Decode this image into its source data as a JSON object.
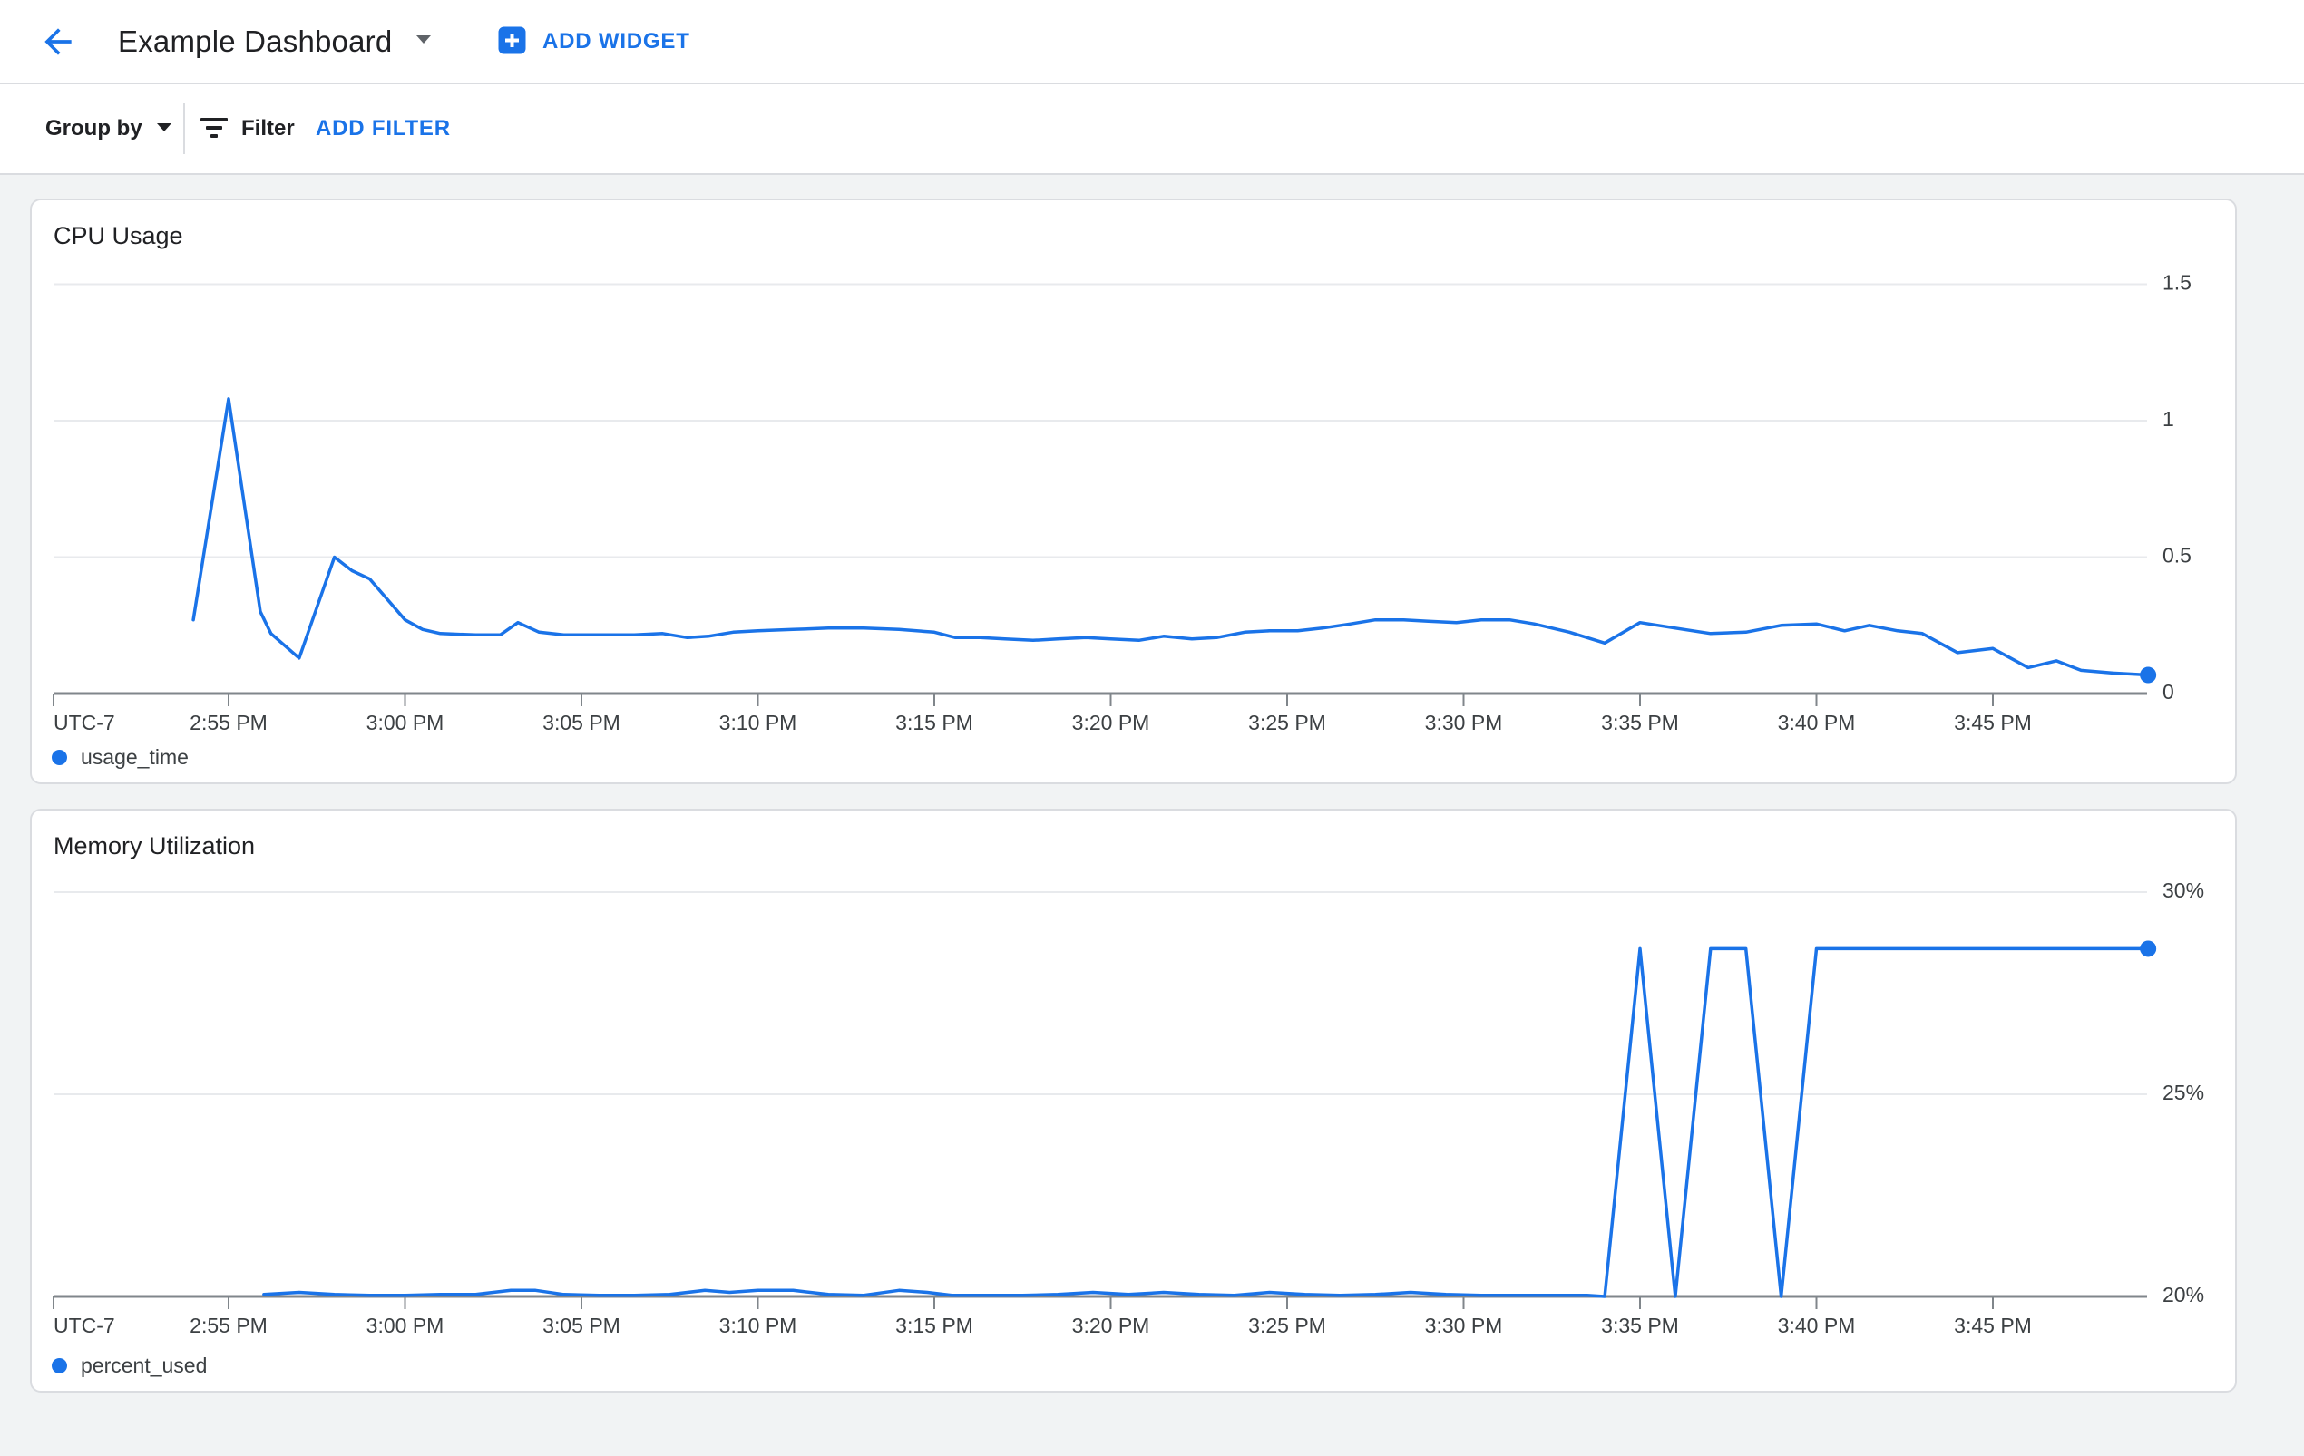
{
  "header": {
    "back_icon": "arrow-back",
    "title": "Example Dashboard",
    "title_caret_icon": "arrow-drop-down",
    "add_widget_icon": "plus-box",
    "add_widget_label": "ADD WIDGET"
  },
  "toolbar": {
    "group_by_label": "Group by",
    "group_by_caret_icon": "arrow-drop-down",
    "filter_icon": "filter-list",
    "filter_label": "Filter",
    "add_filter_label": "ADD FILTER"
  },
  "colors": {
    "accent": "#1a73e8",
    "series_line": "#1a73e8",
    "grid_line": "#e8eaed",
    "axis_line": "#80868b",
    "tick_text": "#3c4043",
    "title_text": "#202124",
    "card_border": "#dadce0",
    "card_background": "#ffffff",
    "page_background": "#f1f3f4"
  },
  "chart_data": [
    {
      "type": "line",
      "title": "CPU Usage",
      "timezone_label": "UTC-7",
      "legend_position": "bottom-left",
      "grid": true,
      "x_axis": {
        "tick_labels": [
          "2:55 PM",
          "3:00 PM",
          "3:05 PM",
          "3:10 PM",
          "3:15 PM",
          "3:20 PM",
          "3:25 PM",
          "3:30 PM",
          "3:35 PM",
          "3:40 PM",
          "3:45 PM"
        ],
        "tick_interval_minutes": 5,
        "data_start": "2:54 PM",
        "data_end": "3:49 PM"
      },
      "y_axis": {
        "min": 0,
        "max": 1.5,
        "ticks": [
          {
            "value": 0,
            "label": "0"
          },
          {
            "value": 0.5,
            "label": "0.5"
          },
          {
            "value": 1,
            "label": "1"
          },
          {
            "value": 1.5,
            "label": "1.5"
          }
        ]
      },
      "series": [
        {
          "name": "usage_time",
          "color": "#1a73e8",
          "x_unit": "minutes_after_2:54_PM",
          "points": [
            [
              0,
              0.27
            ],
            [
              1,
              1.08
            ],
            [
              1.9,
              0.3
            ],
            [
              2.2,
              0.22
            ],
            [
              3,
              0.13
            ],
            [
              4,
              0.5
            ],
            [
              4.5,
              0.45
            ],
            [
              5,
              0.42
            ],
            [
              6,
              0.27
            ],
            [
              6.5,
              0.235
            ],
            [
              7,
              0.22
            ],
            [
              8,
              0.215
            ],
            [
              8.7,
              0.215
            ],
            [
              9.2,
              0.26
            ],
            [
              9.8,
              0.225
            ],
            [
              10.5,
              0.215
            ],
            [
              11.5,
              0.215
            ],
            [
              12.5,
              0.215
            ],
            [
              13.3,
              0.22
            ],
            [
              14,
              0.205
            ],
            [
              14.6,
              0.21
            ],
            [
              15.3,
              0.225
            ],
            [
              16,
              0.23
            ],
            [
              17,
              0.235
            ],
            [
              18,
              0.24
            ],
            [
              19,
              0.24
            ],
            [
              20,
              0.235
            ],
            [
              21,
              0.225
            ],
            [
              21.6,
              0.205
            ],
            [
              22.3,
              0.205
            ],
            [
              23,
              0.2
            ],
            [
              23.8,
              0.195
            ],
            [
              24.5,
              0.2
            ],
            [
              25.3,
              0.205
            ],
            [
              26,
              0.2
            ],
            [
              26.8,
              0.195
            ],
            [
              27.5,
              0.21
            ],
            [
              28.3,
              0.2
            ],
            [
              29,
              0.205
            ],
            [
              29.8,
              0.225
            ],
            [
              30.5,
              0.23
            ],
            [
              31.3,
              0.23
            ],
            [
              32,
              0.24
            ],
            [
              32.8,
              0.255
            ],
            [
              33.5,
              0.27
            ],
            [
              34.3,
              0.27
            ],
            [
              35,
              0.265
            ],
            [
              35.8,
              0.26
            ],
            [
              36.5,
              0.27
            ],
            [
              37.3,
              0.27
            ],
            [
              38,
              0.255
            ],
            [
              39,
              0.225
            ],
            [
              40,
              0.185
            ],
            [
              41,
              0.26
            ],
            [
              42,
              0.24
            ],
            [
              43,
              0.22
            ],
            [
              44,
              0.225
            ],
            [
              45,
              0.25
            ],
            [
              46,
              0.255
            ],
            [
              46.8,
              0.23
            ],
            [
              47.5,
              0.25
            ],
            [
              48.3,
              0.23
            ],
            [
              49,
              0.22
            ],
            [
              50,
              0.15
            ],
            [
              51,
              0.165
            ],
            [
              52,
              0.095
            ],
            [
              52.8,
              0.12
            ],
            [
              53.5,
              0.085
            ],
            [
              54.4,
              0.075
            ],
            [
              55.4,
              0.068
            ]
          ]
        }
      ]
    },
    {
      "type": "line",
      "title": "Memory Utilization",
      "timezone_label": "UTC-7",
      "legend_position": "bottom-left",
      "grid": true,
      "x_axis": {
        "tick_labels": [
          "2:55 PM",
          "3:00 PM",
          "3:05 PM",
          "3:10 PM",
          "3:15 PM",
          "3:20 PM",
          "3:25 PM",
          "3:30 PM",
          "3:35 PM",
          "3:40 PM",
          "3:45 PM"
        ],
        "tick_interval_minutes": 5,
        "data_start": "2:56 PM",
        "data_end": "3:49 PM"
      },
      "y_axis": {
        "min": 20,
        "max": 30,
        "unit": "%",
        "ticks": [
          {
            "value": 20,
            "label": "20%"
          },
          {
            "value": 25,
            "label": "25%"
          },
          {
            "value": 30,
            "label": "30%"
          }
        ]
      },
      "series": [
        {
          "name": "percent_used",
          "color": "#1a73e8",
          "x_unit": "minutes_after_2:54_PM",
          "points": [
            [
              2,
              20.05
            ],
            [
              3,
              20.1
            ],
            [
              4,
              20.05
            ],
            [
              5,
              20.03
            ],
            [
              6,
              20.03
            ],
            [
              7,
              20.05
            ],
            [
              8,
              20.05
            ],
            [
              9,
              20.15
            ],
            [
              9.7,
              20.15
            ],
            [
              10.5,
              20.05
            ],
            [
              11.5,
              20.03
            ],
            [
              12.5,
              20.03
            ],
            [
              13.5,
              20.05
            ],
            [
              14.5,
              20.15
            ],
            [
              15.2,
              20.1
            ],
            [
              16,
              20.15
            ],
            [
              17,
              20.15
            ],
            [
              18,
              20.05
            ],
            [
              19,
              20.03
            ],
            [
              20,
              20.15
            ],
            [
              20.8,
              20.1
            ],
            [
              21.5,
              20.03
            ],
            [
              22.5,
              20.03
            ],
            [
              23.5,
              20.03
            ],
            [
              24.5,
              20.05
            ],
            [
              25.5,
              20.1
            ],
            [
              26.5,
              20.05
            ],
            [
              27.5,
              20.1
            ],
            [
              28.5,
              20.05
            ],
            [
              29.5,
              20.03
            ],
            [
              30.5,
              20.1
            ],
            [
              31.5,
              20.05
            ],
            [
              32.5,
              20.03
            ],
            [
              33.5,
              20.05
            ],
            [
              34.5,
              20.1
            ],
            [
              35.5,
              20.05
            ],
            [
              36.5,
              20.03
            ],
            [
              37.5,
              20.03
            ],
            [
              38.5,
              20.03
            ],
            [
              39.5,
              20.03
            ],
            [
              40,
              20.0
            ],
            [
              41,
              28.6
            ],
            [
              42,
              20.0
            ],
            [
              43,
              28.6
            ],
            [
              44,
              28.6
            ],
            [
              45,
              20.0
            ],
            [
              46,
              28.6
            ],
            [
              55.4,
              28.6
            ]
          ]
        }
      ]
    }
  ]
}
